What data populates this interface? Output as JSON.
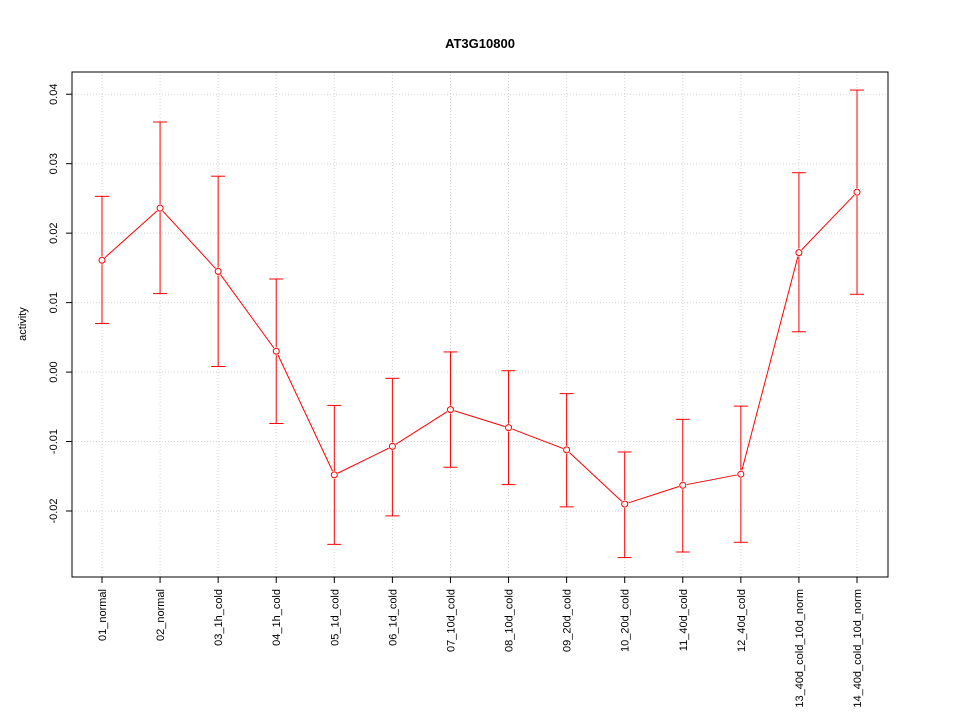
{
  "chart_data": {
    "type": "line",
    "title": "AT3G10800",
    "xlabel": "",
    "ylabel": "activity",
    "categories": [
      "01_normal",
      "02_normal",
      "03_1h_cold",
      "04_1h_cold",
      "05_1d_cold",
      "06_1d_cold",
      "07_10d_cold",
      "08_10d_cold",
      "09_20d_cold",
      "10_20d_cold",
      "11_40d_cold",
      "12_40d_cold",
      "13_40d_cold_10d_norm",
      "14_40d_cold_10d_norm"
    ],
    "series": [
      {
        "values": [
          0.0161,
          0.0236,
          0.0145,
          0.003,
          -0.0148,
          -0.0107,
          -0.0054,
          -0.008,
          -0.0112,
          -0.019,
          -0.0163,
          -0.0147,
          0.0172,
          0.0259
        ],
        "upper": [
          0.0253,
          0.036,
          0.0282,
          0.0134,
          -0.0048,
          -0.0009,
          0.0029,
          0.0002,
          -0.0031,
          -0.0115,
          -0.0068,
          -0.0049,
          0.0287,
          0.0406
        ],
        "lower": [
          0.007,
          0.0113,
          0.0008,
          -0.0074,
          -0.0248,
          -0.0207,
          -0.0137,
          -0.0162,
          -0.0194,
          -0.0267,
          -0.0259,
          -0.0245,
          0.0058,
          0.0112
        ]
      }
    ],
    "y_ticks": [
      -0.02,
      -0.01,
      0.0,
      0.01,
      0.02,
      0.03,
      0.04
    ],
    "y_tick_labels": [
      "-0.02",
      "-0.01",
      "0.00",
      "0.01",
      "0.02",
      "0.03",
      "0.04"
    ],
    "ylim": [
      -0.0295,
      0.0432
    ],
    "grid": true,
    "color": "#ff0000"
  }
}
